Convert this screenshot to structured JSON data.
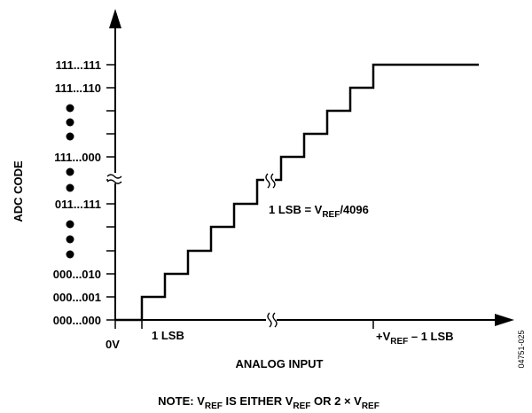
{
  "y_axis": {
    "title": "ADC CODE",
    "tick_labels": [
      "111...111",
      "111...110",
      "111...000",
      "011...111",
      "000...010",
      "000...001",
      "000...000"
    ]
  },
  "x_axis": {
    "title": "ANALOG INPUT",
    "origin_label": "0V",
    "lsb_label": "1 LSB",
    "vref_label": {
      "prefix": "+V",
      "sub": "REF",
      "suffix": " – 1 LSB"
    }
  },
  "lsb_annotation": {
    "prefix": "1 LSB = V",
    "sub": "REF",
    "suffix": "/4096"
  },
  "note": {
    "p1": "NOTE: V",
    "s1": "REF",
    "p2": " IS EITHER V",
    "s2": "REF",
    "p3": " OR 2 × V",
    "s3": "REF"
  },
  "figure_id": "04751-025"
}
